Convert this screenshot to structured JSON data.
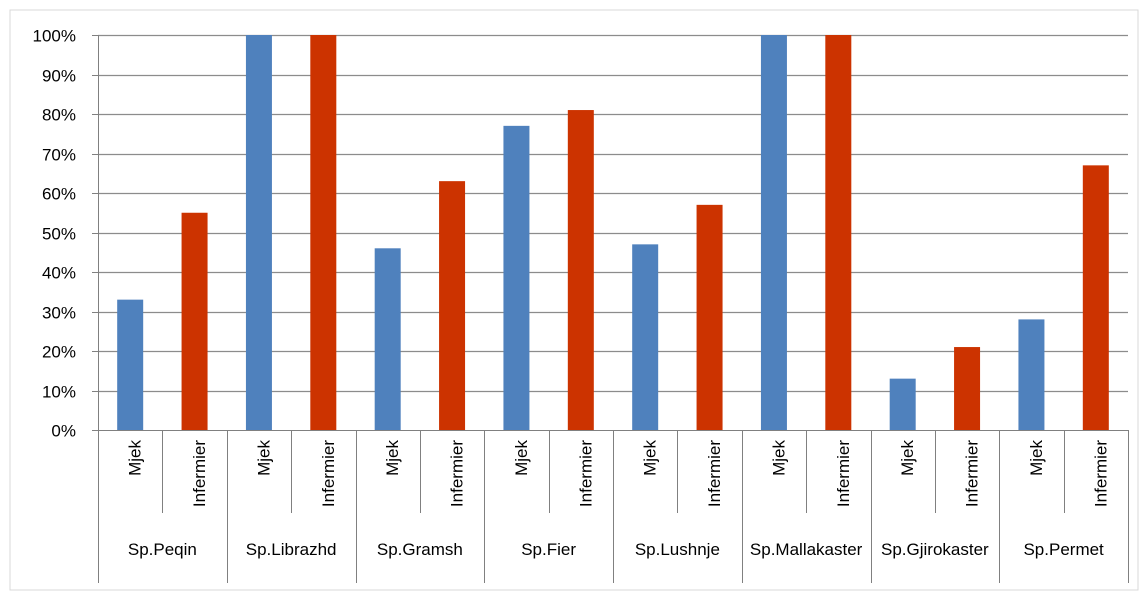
{
  "chart_data": {
    "type": "bar",
    "title": "",
    "xlabel": "",
    "ylabel": "",
    "ylim": [
      0,
      100
    ],
    "y_tick_labels": [
      "0%",
      "10%",
      "20%",
      "30%",
      "40%",
      "50%",
      "60%",
      "70%",
      "80%",
      "90%",
      "100%"
    ],
    "grid": true,
    "groups": [
      "Sp.Peqin",
      "Sp.Librazhd",
      "Sp.Gramsh",
      "Sp.Fier",
      "Sp.Lushnje",
      "Sp.Mallakaster",
      "Sp.Gjirokaster",
      "Sp.Permet"
    ],
    "subcategories": [
      "Mjek",
      "Infermier"
    ],
    "categories": [
      "Mjek",
      "Infermier",
      "Mjek",
      "Infermier",
      "Mjek",
      "Infermier",
      "Mjek",
      "Infermier",
      "Mjek",
      "Infermier",
      "Mjek",
      "Infermier",
      "Mjek",
      "Infermier",
      "Mjek",
      "Infermier"
    ],
    "values": [
      33,
      55,
      100,
      100,
      46,
      63,
      77,
      81,
      47,
      57,
      100,
      100,
      13,
      21,
      28,
      67
    ],
    "colors": {
      "Mjek": "#4f81bd",
      "Infermier": "#cc3300",
      "grid": "#8c8c8c",
      "axis": "#808080"
    }
  }
}
